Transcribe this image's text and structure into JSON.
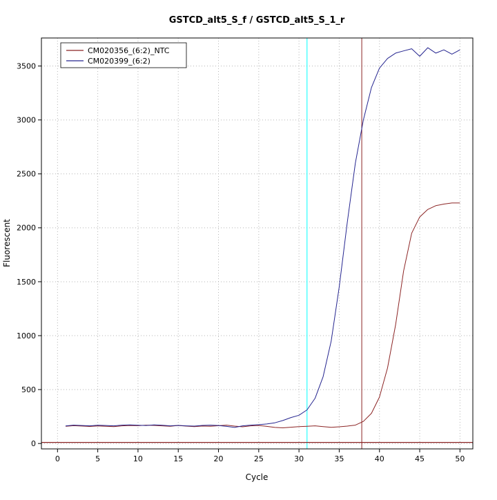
{
  "chart_data": {
    "type": "line",
    "title": "GSTCD_alt5_S_f / GSTCD_alt5_S_1_r",
    "xlabel": "Cycle",
    "ylabel": "Fluorescent",
    "xlim": [
      -2,
      51.6
    ],
    "ylim": [
      -50,
      3760
    ],
    "xticks": [
      0,
      5,
      10,
      15,
      20,
      25,
      30,
      35,
      40,
      45,
      50
    ],
    "yticks": [
      0,
      500,
      1000,
      1500,
      2000,
      2500,
      3000,
      3500
    ],
    "grid": "dotted",
    "grid_color": "#b3b3b3",
    "legend_position": "top-left",
    "x": [
      1,
      2,
      3,
      4,
      5,
      6,
      7,
      8,
      9,
      10,
      11,
      12,
      13,
      14,
      15,
      16,
      17,
      18,
      19,
      20,
      21,
      22,
      23,
      24,
      25,
      26,
      27,
      28,
      29,
      30,
      31,
      32,
      33,
      34,
      35,
      36,
      37,
      38,
      39,
      40,
      41,
      42,
      43,
      44,
      45,
      46,
      47,
      48,
      49,
      50
    ],
    "series": [
      {
        "name": "CM020356_(6:2)_NTC",
        "color": "#8b2323",
        "values": [
          160,
          165,
          162,
          158,
          163,
          160,
          156,
          164,
          167,
          165,
          170,
          168,
          164,
          160,
          167,
          161,
          157,
          162,
          160,
          165,
          170,
          161,
          155,
          164,
          167,
          159,
          149,
          145,
          151,
          156,
          160,
          164,
          156,
          150,
          155,
          161,
          170,
          205,
          280,
          430,
          700,
          1100,
          1600,
          1950,
          2100,
          2170,
          2205,
          2220,
          2230,
          2230
        ]
      },
      {
        "name": "CM020399_(6:2)",
        "color": "#24248f",
        "values": [
          163,
          170,
          167,
          164,
          169,
          167,
          164,
          170,
          172,
          169,
          167,
          172,
          169,
          164,
          168,
          164,
          161,
          168,
          170,
          167,
          159,
          149,
          164,
          170,
          175,
          181,
          192,
          213,
          241,
          262,
          312,
          420,
          620,
          950,
          1450,
          2050,
          2600,
          3000,
          3300,
          3480,
          3570,
          3620,
          3640,
          3660,
          3590,
          3670,
          3620,
          3650,
          3610,
          3650
        ]
      }
    ],
    "vlines": [
      {
        "x": 31,
        "color": "#00ffff",
        "name": "threshold-cycle-line-cyan"
      },
      {
        "x": 37.8,
        "color": "#8b2323",
        "name": "threshold-cycle-line-red"
      }
    ],
    "hlines": [
      {
        "y": 10,
        "color": "#8b2323",
        "name": "baseline-threshold-line"
      }
    ]
  }
}
